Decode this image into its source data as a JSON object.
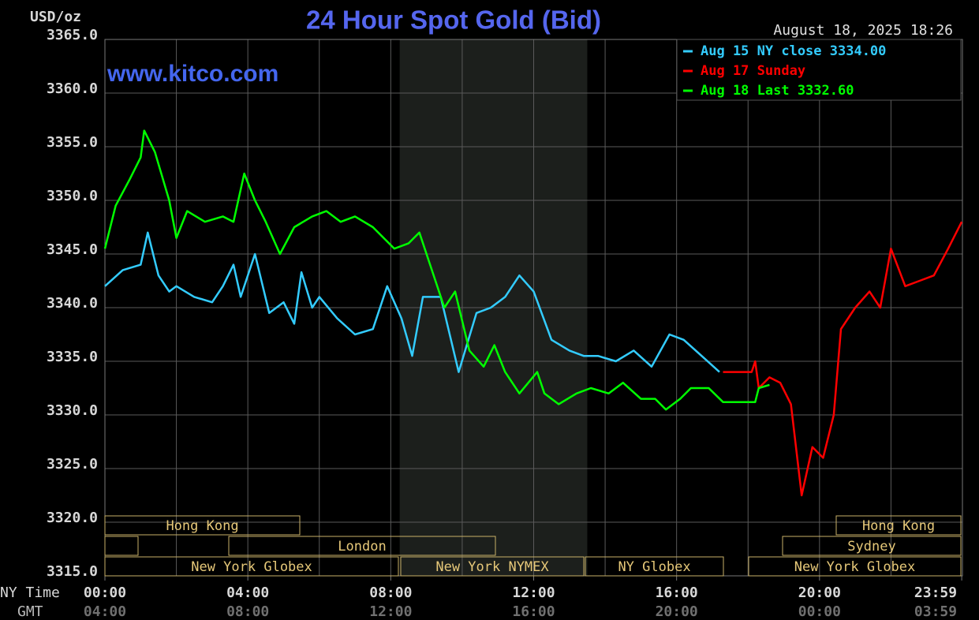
{
  "chart_data": {
    "type": "line",
    "title": "24 Hour Spot Gold (Bid)",
    "watermark": "www.kitco.com",
    "timestamp": "August 18, 2025 18:26",
    "y_label": "USD/oz",
    "x_label": "NY Time",
    "x2_label": "GMT",
    "xlim": [
      0,
      24
    ],
    "ylim": [
      3315,
      3365
    ],
    "yticks": [
      {
        "value": 3315,
        "label": "3315.0"
      },
      {
        "value": 3320,
        "label": "3320.0"
      },
      {
        "value": 3325,
        "label": "3325.0"
      },
      {
        "value": 3330,
        "label": "3330.0"
      },
      {
        "value": 3335,
        "label": "3335.0"
      },
      {
        "value": 3340,
        "label": "3340.0"
      },
      {
        "value": 3345,
        "label": "3345.0"
      },
      {
        "value": 3350,
        "label": "3350.0"
      },
      {
        "value": 3355,
        "label": "3355.0"
      },
      {
        "value": 3360,
        "label": "3360.0"
      },
      {
        "value": 3365,
        "label": "3365.0"
      }
    ],
    "xticks": [
      {
        "value": 0,
        "label": "00:00"
      },
      {
        "value": 4,
        "label": "04:00"
      },
      {
        "value": 8,
        "label": "08:00"
      },
      {
        "value": 12,
        "label": "12:00"
      },
      {
        "value": 16,
        "label": "16:00"
      },
      {
        "value": 20,
        "label": "20:00"
      },
      {
        "value": 23.98,
        "label": "23:59"
      }
    ],
    "x2ticks": [
      {
        "value": 0,
        "label": "04:00"
      },
      {
        "value": 4,
        "label": "08:00"
      },
      {
        "value": 8,
        "label": "12:00"
      },
      {
        "value": 12,
        "label": "16:00"
      },
      {
        "value": 16,
        "label": "20:00"
      },
      {
        "value": 20,
        "label": "00:00"
      },
      {
        "value": 23.98,
        "label": "03:59"
      }
    ],
    "x_grid": [
      2,
      4,
      6,
      8,
      10,
      12,
      14,
      16,
      18,
      20,
      22
    ],
    "grid": true,
    "shaded_range": [
      8.25,
      13.5
    ],
    "sessions": [
      "Hong Kong",
      "London",
      "New York Globex",
      "New York NYMEX",
      "NY Globex",
      "Hong Kong",
      "Sydney",
      "New York Globex"
    ],
    "series": [
      {
        "name": "Aug 15 NY close 3334.00",
        "color": "#33ccff",
        "x": [
          0,
          0.5,
          1.0,
          1.2,
          1.5,
          1.8,
          2.0,
          2.5,
          3.0,
          3.3,
          3.6,
          3.8,
          4.2,
          4.6,
          5.0,
          5.3,
          5.5,
          5.8,
          6.0,
          6.5,
          7.0,
          7.5,
          7.9,
          8.3,
          8.6,
          8.9,
          9.4,
          9.9,
          10.4,
          10.8,
          11.2,
          11.6,
          12.0,
          12.5,
          13.0,
          13.4,
          13.8,
          14.3,
          14.8,
          15.3,
          15.8,
          16.2,
          16.7,
          17.2
        ],
        "values": [
          3342,
          3343.5,
          3344,
          3347,
          3343,
          3341.5,
          3342,
          3341,
          3340.5,
          3342,
          3344,
          3341,
          3345,
          3339.5,
          3340.5,
          3338.5,
          3343.3,
          3340,
          3341,
          3339,
          3337.5,
          3338,
          3342,
          3339,
          3335.5,
          3341,
          3341,
          3334,
          3339.5,
          3340,
          3341,
          3343,
          3341.5,
          3337,
          3336,
          3335.5,
          3335.5,
          3335,
          3336,
          3334.5,
          3337.5,
          3337,
          3335.5,
          3334
        ]
      },
      {
        "name": "Aug 17 Sunday",
        "color": "#ff0000",
        "x": [
          17.3,
          18.1,
          18.2,
          18.3,
          18.6,
          18.9,
          19.2,
          19.5,
          19.8,
          20.1,
          20.4,
          20.6,
          21.0,
          21.4,
          21.7,
          22.0,
          22.4,
          22.8,
          23.2,
          23.6,
          23.98
        ],
        "values": [
          3334,
          3334,
          3335,
          3332.5,
          3333.5,
          3333,
          3331,
          3322.5,
          3327,
          3326,
          3330,
          3338,
          3340,
          3341.5,
          3340,
          3345.5,
          3342,
          3342.5,
          3343,
          3345.5,
          3348
        ]
      },
      {
        "name": "Aug 18 Last 3332.60",
        "color": "#00ff00",
        "x": [
          0,
          0.3,
          0.7,
          1.0,
          1.1,
          1.4,
          1.8,
          2.0,
          2.3,
          2.8,
          3.3,
          3.6,
          3.9,
          4.2,
          4.5,
          4.9,
          5.3,
          5.8,
          6.2,
          6.6,
          7.0,
          7.5,
          7.8,
          8.1,
          8.5,
          8.8,
          9.1,
          9.5,
          9.8,
          10.2,
          10.6,
          10.9,
          11.2,
          11.6,
          12.1,
          12.3,
          12.7,
          13.2,
          13.6,
          14.1,
          14.5,
          15.0,
          15.4,
          15.7,
          16.1,
          16.4,
          16.9,
          17.3,
          18.2,
          18.3,
          18.6
        ],
        "values": [
          3345.5,
          3349.5,
          3352,
          3354,
          3356.5,
          3354.5,
          3350,
          3346.5,
          3349,
          3348,
          3348.5,
          3348,
          3352.5,
          3350,
          3348,
          3345,
          3347.5,
          3348.5,
          3349,
          3348,
          3348.5,
          3347.5,
          3346.5,
          3345.5,
          3346,
          3347,
          3344,
          3340,
          3341.5,
          3336,
          3334.5,
          3336.5,
          3334,
          3332,
          3334,
          3332,
          3331,
          3332,
          3332.5,
          3332,
          3333,
          3331.5,
          3331.5,
          3330.5,
          3331.5,
          3332.5,
          3332.5,
          3331.2,
          3331.2,
          3332.5,
          3332.8
        ]
      }
    ]
  }
}
